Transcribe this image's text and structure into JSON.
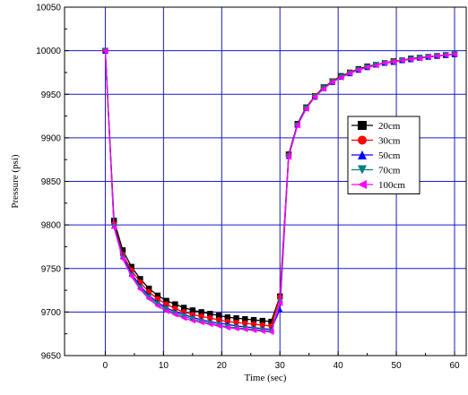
{
  "chart_data": {
    "type": "line",
    "xlabel": "Time (sec)",
    "ylabel": "Pressure (psi)",
    "xlim": [
      -7,
      62
    ],
    "ylim": [
      9650,
      10050
    ],
    "xticks": [
      0,
      10,
      20,
      30,
      40,
      50,
      60
    ],
    "yticks": [
      9650,
      9700,
      9750,
      9800,
      9850,
      9900,
      9950,
      10000,
      10050
    ],
    "grid": true,
    "grid_color": "#1a1acc",
    "legend_position": "right-middle",
    "series": [
      {
        "name": "20cm",
        "color": "#000000",
        "marker": "square",
        "x": [
          0,
          1.5,
          3,
          4.5,
          6,
          7.5,
          9,
          10.5,
          12,
          13.5,
          15,
          16.5,
          18,
          19.5,
          21,
          22.5,
          24,
          25.5,
          27,
          28.5,
          30,
          31.5,
          33,
          34.5,
          36,
          37.5,
          39,
          40.5,
          42,
          43.5,
          45,
          46.5,
          48,
          49.5,
          51,
          52.5,
          54,
          55.5,
          57,
          58.5,
          60
        ],
        "y": [
          10000,
          9805,
          9771,
          9752,
          9738,
          9727,
          9719,
          9713,
          9709,
          9705,
          9702,
          9700,
          9698,
          9696,
          9694,
          9693,
          9692,
          9691,
          9690,
          9689,
          9718,
          9881,
          9916,
          9935,
          9948,
          9958,
          9965,
          9971,
          9975,
          9979,
          9982,
          9984,
          9986,
          9988,
          9989,
          9991,
          9992,
          9993,
          9994,
          9995,
          9996
        ]
      },
      {
        "name": "30cm",
        "color": "#ff0000",
        "marker": "circle",
        "x": [
          0,
          1.5,
          3,
          4.5,
          6,
          7.5,
          9,
          10.5,
          12,
          13.5,
          15,
          16.5,
          18,
          19.5,
          21,
          22.5,
          24,
          25.5,
          27,
          28.5,
          30,
          31.5,
          33,
          34.5,
          36,
          37.5,
          39,
          40.5,
          42,
          43.5,
          45,
          46.5,
          48,
          49.5,
          51,
          52.5,
          54,
          55.5,
          57,
          58.5,
          60
        ],
        "y": [
          10000,
          9801,
          9766,
          9748,
          9734,
          9723,
          9715,
          9709,
          9704,
          9700,
          9697,
          9695,
          9693,
          9691,
          9689,
          9688,
          9687,
          9686,
          9685,
          9684,
          9717,
          9880,
          9915,
          9934,
          9948,
          9957,
          9965,
          9970,
          9975,
          9978,
          9981,
          9984,
          9986,
          9988,
          9989,
          9990,
          9992,
          9993,
          9994,
          9995,
          9996
        ]
      },
      {
        "name": "50cm",
        "color": "#0000ff",
        "marker": "triangle-up",
        "x": [
          0,
          1.5,
          3,
          4.5,
          6,
          7.5,
          9,
          10.5,
          12,
          13.5,
          15,
          16.5,
          18,
          19.5,
          21,
          22.5,
          24,
          25.5,
          27,
          28.5,
          30,
          31.5,
          33,
          34.5,
          36,
          37.5,
          39,
          40.5,
          42,
          43.5,
          45,
          46.5,
          48,
          49.5,
          51,
          52.5,
          54,
          55.5,
          57,
          58.5,
          60
        ],
        "y": [
          10000,
          9799,
          9764,
          9744,
          9730,
          9719,
          9711,
          9705,
          9700,
          9697,
          9694,
          9691,
          9689,
          9687,
          9686,
          9684,
          9683,
          9682,
          9681,
          9680,
          9703,
          9879,
          9915,
          9934,
          9947,
          9957,
          9964,
          9970,
          9974,
          9978,
          9981,
          9984,
          9986,
          9987,
          9989,
          9990,
          9992,
          9993,
          9994,
          9995,
          9996
        ]
      },
      {
        "name": "70cm",
        "color": "#008080",
        "marker": "triangle-down",
        "x": [
          0,
          1.5,
          3,
          4.5,
          6,
          7.5,
          9,
          10.5,
          12,
          13.5,
          15,
          16.5,
          18,
          19.5,
          21,
          22.5,
          24,
          25.5,
          27,
          28.5,
          30,
          31.5,
          33,
          34.5,
          36,
          37.5,
          39,
          40.5,
          42,
          43.5,
          45,
          46.5,
          48,
          49.5,
          51,
          52.5,
          54,
          55.5,
          57,
          58.5,
          60
        ],
        "y": [
          10000,
          9798,
          9762,
          9742,
          9728,
          9717,
          9709,
          9703,
          9698,
          9695,
          9692,
          9689,
          9687,
          9685,
          9683,
          9682,
          9681,
          9680,
          9679,
          9678,
          9712,
          9879,
          9914,
          9934,
          9947,
          9957,
          9964,
          9970,
          9974,
          9978,
          9981,
          9984,
          9986,
          9987,
          9989,
          9990,
          9992,
          9993,
          9994,
          9995,
          9996
        ]
      },
      {
        "name": "100cm",
        "color": "#ff00ff",
        "marker": "triangle-left",
        "x": [
          0,
          1.5,
          3,
          4.5,
          6,
          7.5,
          9,
          10.5,
          12,
          13.5,
          15,
          16.5,
          18,
          19.5,
          21,
          22.5,
          24,
          25.5,
          27,
          28.5,
          30,
          31.5,
          33,
          34.5,
          36,
          37.5,
          39,
          40.5,
          42,
          43.5,
          45,
          46.5,
          48,
          49.5,
          51,
          52.5,
          54,
          55.5,
          57,
          58.5,
          60
        ],
        "y": [
          10000,
          9797,
          9761,
          9741,
          9726,
          9715,
          9707,
          9701,
          9697,
          9693,
          9690,
          9688,
          9686,
          9684,
          9682,
          9681,
          9680,
          9679,
          9678,
          9677,
          9710,
          9878,
          9914,
          9933,
          9947,
          9956,
          9964,
          9969,
          9974,
          9978,
          9981,
          9983,
          9986,
          9987,
          9989,
          9990,
          9991,
          9993,
          9994,
          9995,
          9996
        ]
      }
    ]
  }
}
